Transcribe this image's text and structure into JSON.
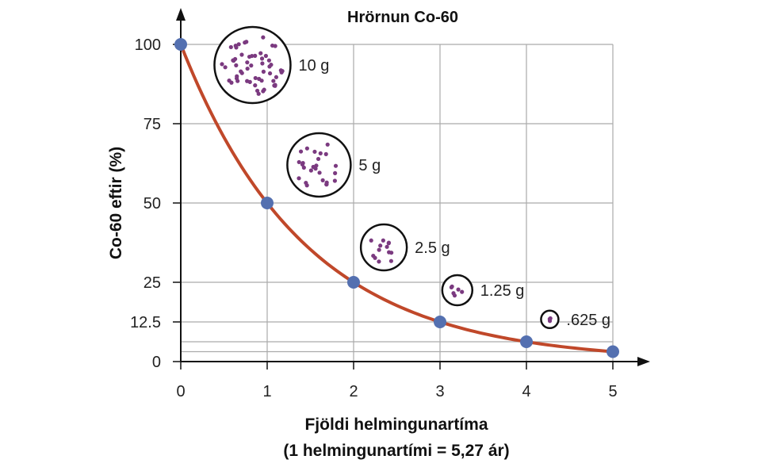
{
  "chart_data": {
    "type": "line",
    "title": "Hrörnun Co-60",
    "xlabel": "Fjöldi helmingunartíma",
    "xlabel_sub": "(1 helmingunartími = 5,27 ár)",
    "ylabel": "Co-60 eftir (%)",
    "xlim": [
      0,
      5
    ],
    "ylim": [
      0,
      100
    ],
    "x_ticks": [
      "0",
      "1",
      "2",
      "3",
      "4",
      "5"
    ],
    "y_ticks": [
      "0",
      "12.5",
      "25",
      "50",
      "75",
      "100"
    ],
    "grid": true,
    "series": [
      {
        "x": [
          0,
          1,
          2,
          3,
          4,
          5
        ],
        "y": [
          100,
          50,
          25,
          12.5,
          6.25,
          3.125
        ]
      }
    ],
    "annotations": [
      {
        "label": "10 g",
        "at_x": 0.83,
        "at_y": 93.5
      },
      {
        "label": "5 g",
        "at_x": 1.6,
        "at_y": 62
      },
      {
        "label": "2.5 g",
        "at_x": 2.35,
        "at_y": 36
      },
      {
        "label": "1.25 g",
        "at_x": 3.2,
        "at_y": 22.5
      },
      {
        "label": ".625 g",
        "at_x": 4.27,
        "at_y": 13.3
      }
    ],
    "colors": {
      "curve": "#c0482a",
      "points": "#5470b0",
      "dots": "#7b3a80",
      "grid": "#aaaaaa"
    }
  }
}
